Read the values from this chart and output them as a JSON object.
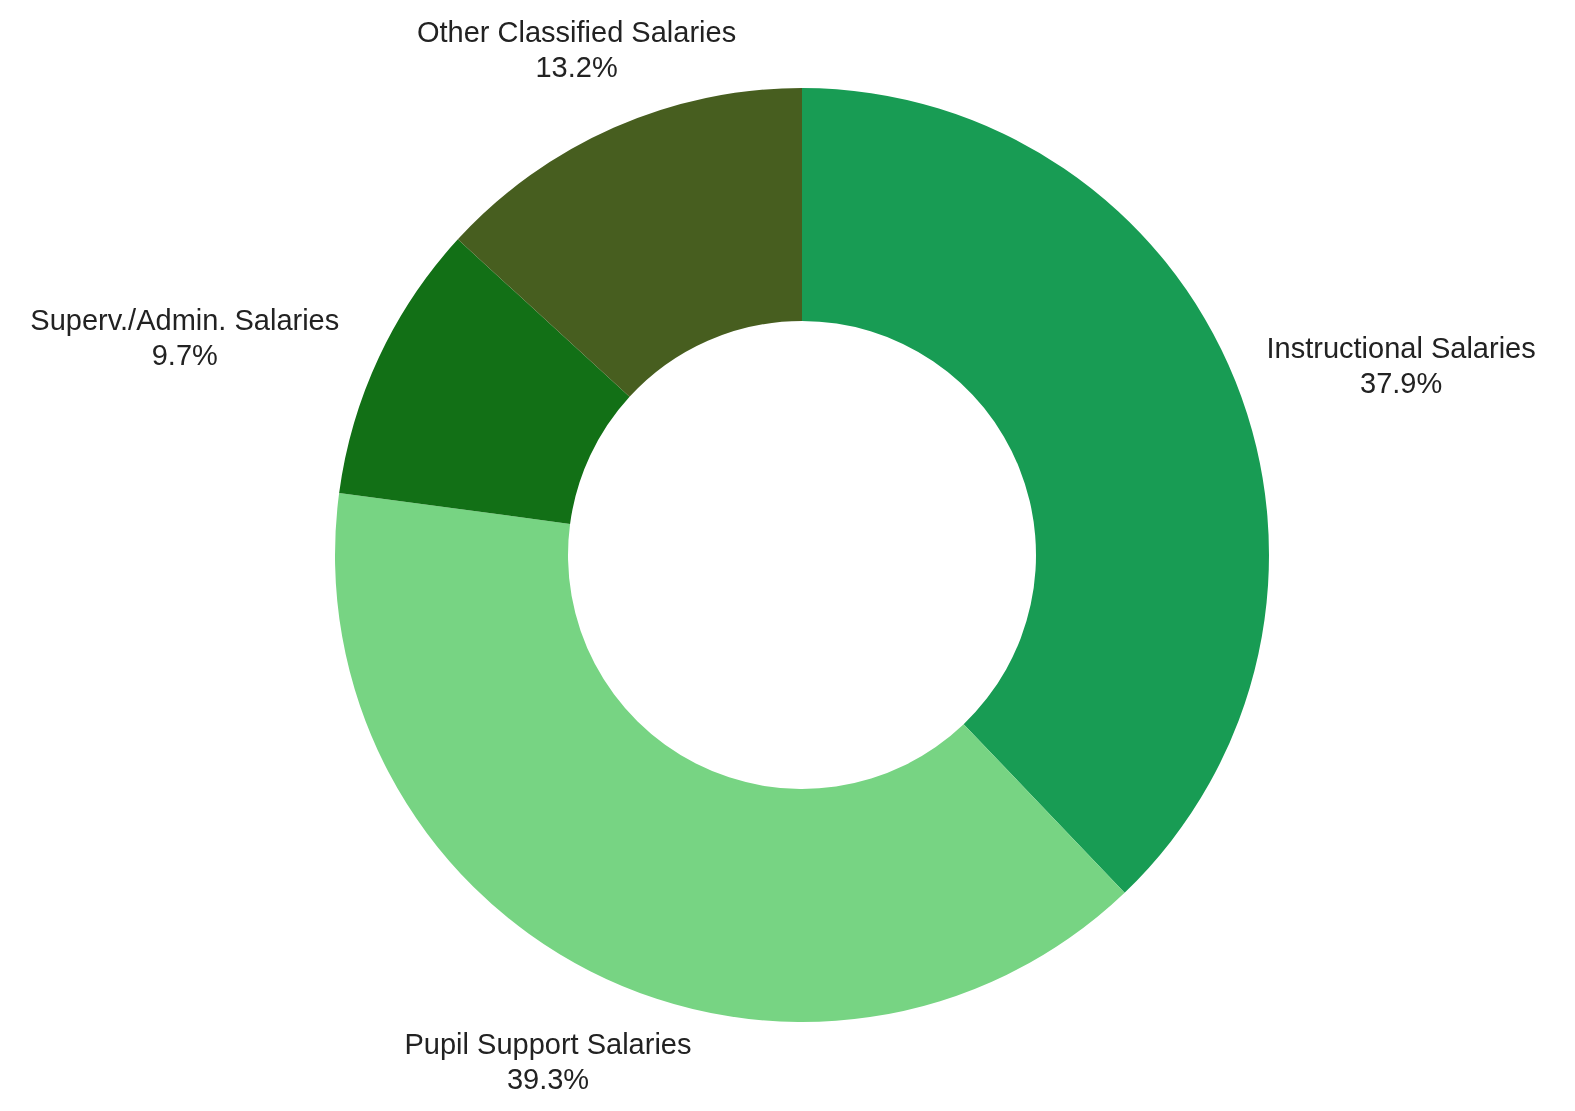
{
  "chart_data": {
    "type": "donut",
    "categories": [
      "Instructional Salaries",
      "Pupil Support Salaries",
      "Superv./Admin. Salaries",
      "Other Classified Salaries"
    ],
    "values": [
      37.9,
      39.3,
      9.7,
      13.2
    ],
    "colors": [
      "#189c54",
      "#77d483",
      "#127016",
      "#475e1f"
    ],
    "value_labels": [
      "37.9%",
      "39.3%",
      "9.7%",
      "13.2%"
    ]
  }
}
